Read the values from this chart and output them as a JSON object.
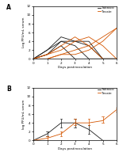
{
  "panel_A": {
    "tabasco_lines": [
      [
        0,
        1,
        3,
        0,
        0,
        0,
        0
      ],
      [
        0,
        2,
        4,
        3,
        0,
        0,
        0
      ],
      [
        0,
        2,
        5,
        4,
        4,
        0,
        0
      ],
      [
        0,
        1,
        4,
        4,
        3,
        0,
        0
      ]
    ],
    "tecate_lines": [
      [
        0,
        1,
        3,
        5,
        3,
        0,
        0
      ],
      [
        0,
        1,
        2,
        4,
        5,
        3,
        0
      ],
      [
        0,
        0,
        1,
        2,
        3,
        5,
        7
      ],
      [
        0,
        0,
        1,
        1,
        2,
        4,
        7
      ]
    ],
    "x": [
      0,
      1,
      2,
      3,
      4,
      5,
      6
    ],
    "ylim": [
      0,
      12
    ],
    "yticks": [
      0,
      2,
      4,
      6,
      8,
      10,
      12
    ],
    "ylabel": "Log PFU/mL serum",
    "xlabel": "Days postinoculation",
    "label_panel": "A"
  },
  "panel_B": {
    "tabasco_mean": [
      0,
      1.5,
      4,
      4,
      2.5,
      0,
      0
    ],
    "tabasco_err_low": [
      0,
      1,
      3,
      3,
      1.5,
      0,
      0
    ],
    "tabasco_err_high": [
      0,
      2,
      5,
      5,
      3.5,
      0,
      0
    ],
    "tecate_mean": [
      0,
      0.5,
      1.5,
      4,
      4,
      4.5,
      7
    ],
    "tecate_err_low": [
      0,
      0,
      1,
      3.5,
      3.5,
      4,
      6.5
    ],
    "tecate_err_high": [
      0,
      1,
      2,
      5,
      5,
      5.5,
      7.5
    ],
    "x": [
      0,
      1,
      2,
      3,
      4,
      5,
      6
    ],
    "ylim": [
      0,
      12
    ],
    "yticks": [
      0,
      2,
      4,
      6,
      8,
      10,
      12
    ],
    "ylabel": "log PFU/mL serum",
    "xlabel": "Days postinoculation",
    "label_panel": "B"
  },
  "tabasco_color": "#1a1a1a",
  "tecate_color": "#d45500",
  "legend_tabasco": "Tabasco",
  "legend_tecate": "Tecate",
  "bg_color": "#ffffff"
}
